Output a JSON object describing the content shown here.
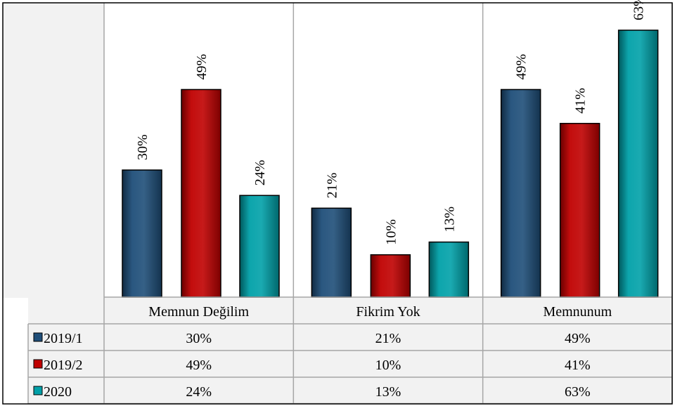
{
  "chart_data": {
    "type": "bar",
    "categories": [
      "Memnun Değilim",
      "Fikrim Yok",
      "Memnunum"
    ],
    "series": [
      {
        "name": "2019/1",
        "values": [
          30,
          21,
          49
        ],
        "labels": [
          "30%",
          "21%",
          "49%"
        ]
      },
      {
        "name": "2019/2",
        "values": [
          49,
          10,
          41
        ],
        "labels": [
          "49%",
          "10%",
          "41%"
        ]
      },
      {
        "name": "2020",
        "values": [
          24,
          13,
          63
        ],
        "labels": [
          "24%",
          "13%",
          "63%"
        ]
      }
    ],
    "ylim": [
      0,
      65
    ],
    "grid": false,
    "legend": "data-table-left",
    "colors": {
      "2019/1": "#1F4E79",
      "2019/2": "#C00000",
      "2020": "#00A0A8",
      "plot_background": "#F2F2F2",
      "border": "#A6A6A6"
    }
  }
}
